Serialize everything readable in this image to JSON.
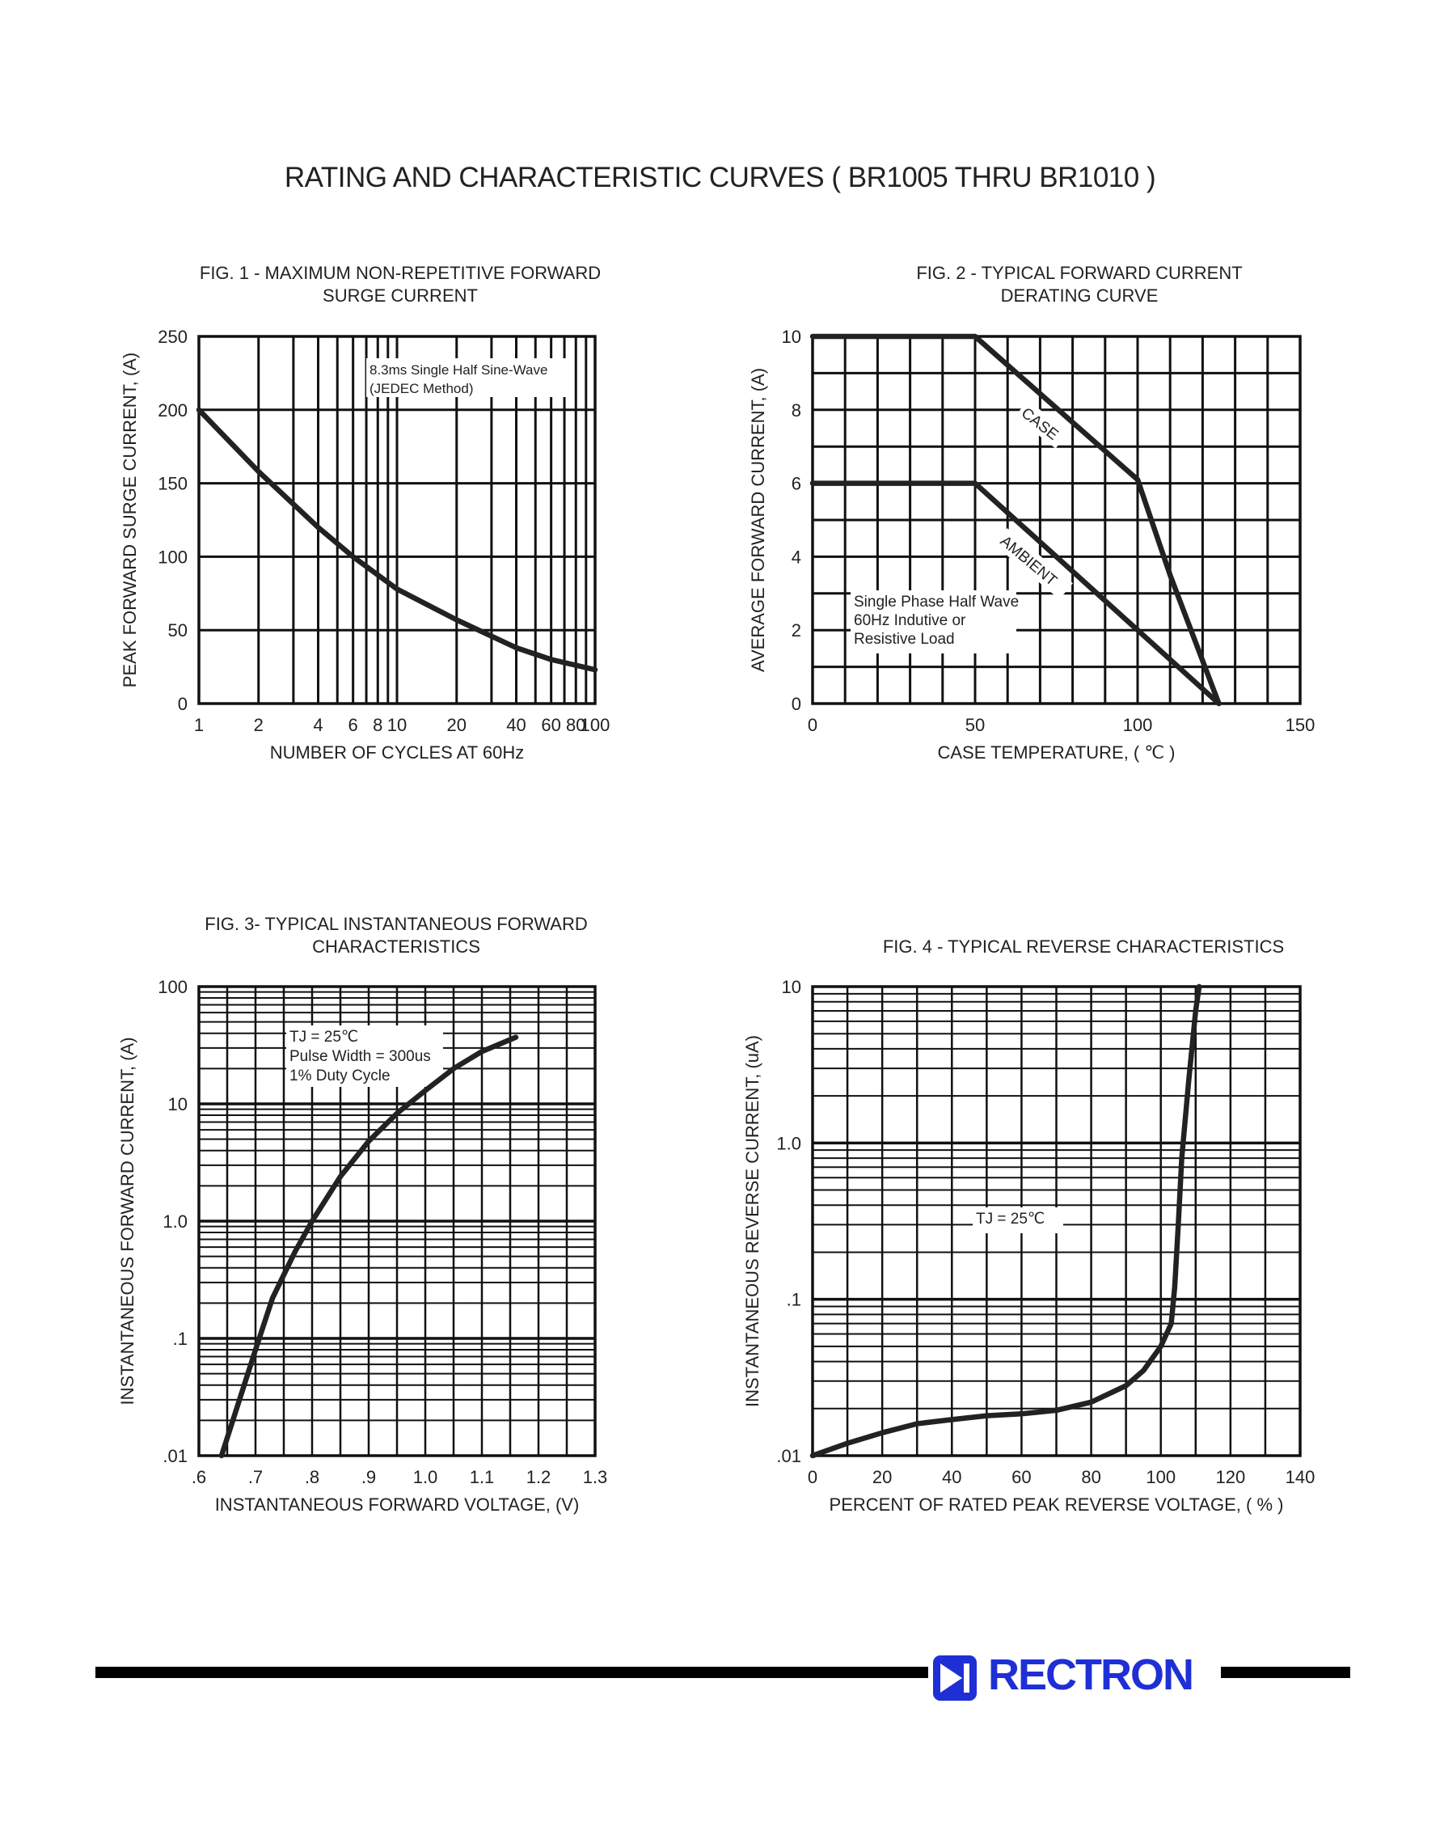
{
  "page_title": "RATING AND CHARACTERISTIC CURVES ( BR1005 THRU BR1010 )",
  "brand": {
    "name": "RECTRON",
    "color": "#1f2fd6"
  },
  "chart_data": [
    {
      "id": "fig1",
      "type": "line",
      "title": "FIG. 1 - MAXIMUM NON-REPETITIVE FORWARD\nSURGE CURRENT",
      "xlabel": "NUMBER OF CYCLES AT 60Hz",
      "ylabel": "PEAK FORWARD SURGE CURRENT, (A)",
      "xscale": "log",
      "xlim": [
        1,
        100
      ],
      "ylim": [
        0,
        250
      ],
      "xticks": [
        1,
        2,
        4,
        6,
        8,
        10,
        20,
        40,
        60,
        80,
        100
      ],
      "xticklabels": [
        "1",
        "2",
        "4",
        "6",
        "8",
        "10",
        "20",
        "40",
        "60",
        "80",
        "100"
      ],
      "yticks": [
        0,
        50,
        100,
        150,
        200,
        250
      ],
      "yticklabels": [
        "0",
        "50",
        "100",
        "150",
        "200",
        "250"
      ],
      "grid": true,
      "annotations": [
        "8.3ms Single Half Sine-Wave",
        "(JEDEC Method)"
      ],
      "series": [
        {
          "x": [
            1,
            2,
            4,
            6,
            10,
            20,
            40,
            60,
            100
          ],
          "y": [
            200,
            158,
            120,
            100,
            78,
            57,
            38,
            30,
            23
          ]
        }
      ]
    },
    {
      "id": "fig2",
      "type": "line",
      "title": "FIG. 2 - TYPICAL FORWARD CURRENT\nDERATING CURVE",
      "xlabel": "CASE TEMPERATURE, ( ℃ )",
      "ylabel": "AVERAGE FORWARD  CURRENT, (A)",
      "xlim": [
        0,
        150
      ],
      "ylim": [
        0,
        10
      ],
      "xticks": [
        0,
        50,
        100,
        150
      ],
      "xticklabels": [
        "0",
        "50",
        "100",
        "150"
      ],
      "yticks": [
        0,
        2,
        4,
        6,
        8,
        10
      ],
      "yticklabels": [
        "0",
        "2",
        "4",
        "6",
        "8",
        "10"
      ],
      "grid": true,
      "annotations": [
        "Single Phase Half Wave",
        "60Hz Indutive or",
        "Resistive Load"
      ],
      "series": [
        {
          "name": "CASE",
          "x": [
            0,
            50,
            100,
            110,
            125
          ],
          "y": [
            10,
            10,
            6.1,
            3.5,
            0
          ]
        },
        {
          "name": "AMBIENT",
          "x": [
            0,
            50,
            125
          ],
          "y": [
            6,
            6,
            0
          ]
        }
      ]
    },
    {
      "id": "fig3",
      "type": "line",
      "title": "FIG. 3- TYPICAL INSTANTANEOUS FORWARD\nCHARACTERISTICS",
      "xlabel": "INSTANTANEOUS FORWARD VOLTAGE, (V)",
      "ylabel": "INSTANTANEOUS FORWARD CURRENT, (A)",
      "yscale": "log",
      "xlim": [
        0.6,
        1.3
      ],
      "ylim": [
        0.01,
        100
      ],
      "xticks": [
        0.6,
        0.7,
        0.8,
        0.9,
        1.0,
        1.1,
        1.2,
        1.3
      ],
      "xticklabels": [
        ".6",
        ".7",
        ".8",
        ".9",
        "1.0",
        "1.1",
        "1.2",
        "1.3"
      ],
      "yticks": [
        0.01,
        0.1,
        1,
        10,
        100
      ],
      "yticklabels": [
        ".01",
        ".1",
        "1.0",
        "10",
        "100"
      ],
      "grid": true,
      "annotations": [
        "TJ = 25℃",
        "Pulse Width = 300us",
        "1% Duty Cycle"
      ],
      "series": [
        {
          "x": [
            0.64,
            0.68,
            0.7,
            0.73,
            0.77,
            0.8,
            0.85,
            0.9,
            0.95,
            1.0,
            1.05,
            1.1,
            1.16
          ],
          "y": [
            0.01,
            0.04,
            0.08,
            0.22,
            0.55,
            1.0,
            2.4,
            4.8,
            8.3,
            13,
            20,
            28,
            37
          ]
        }
      ]
    },
    {
      "id": "fig4",
      "type": "line",
      "title": "FIG. 4 - TYPICAL REVERSE CHARACTERISTICS",
      "xlabel": "PERCENT OF RATED PEAK REVERSE VOLTAGE, ( % )",
      "ylabel": "INSTANTANEOUS REVERSE CURRENT, (uA)",
      "yscale": "log",
      "xlim": [
        0,
        140
      ],
      "ylim": [
        0.01,
        10
      ],
      "xticks": [
        0,
        20,
        40,
        60,
        80,
        100,
        120,
        140
      ],
      "xticklabels": [
        "0",
        "20",
        "40",
        "60",
        "80",
        "100",
        "120",
        "140"
      ],
      "yticks": [
        0.01,
        0.1,
        1,
        10
      ],
      "yticklabels": [
        ".01",
        ".1",
        "1.0",
        "10"
      ],
      "grid": true,
      "annotations": [
        "TJ = 25℃"
      ],
      "series": [
        {
          "x": [
            0,
            10,
            20,
            30,
            40,
            50,
            60,
            70,
            80,
            90,
            95,
            100,
            103,
            104,
            105,
            106,
            108,
            110,
            111
          ],
          "y": [
            0.01,
            0.012,
            0.014,
            0.016,
            0.017,
            0.018,
            0.0185,
            0.0195,
            0.022,
            0.028,
            0.035,
            0.05,
            0.07,
            0.12,
            0.3,
            0.8,
            2.5,
            7,
            10
          ]
        }
      ]
    }
  ]
}
